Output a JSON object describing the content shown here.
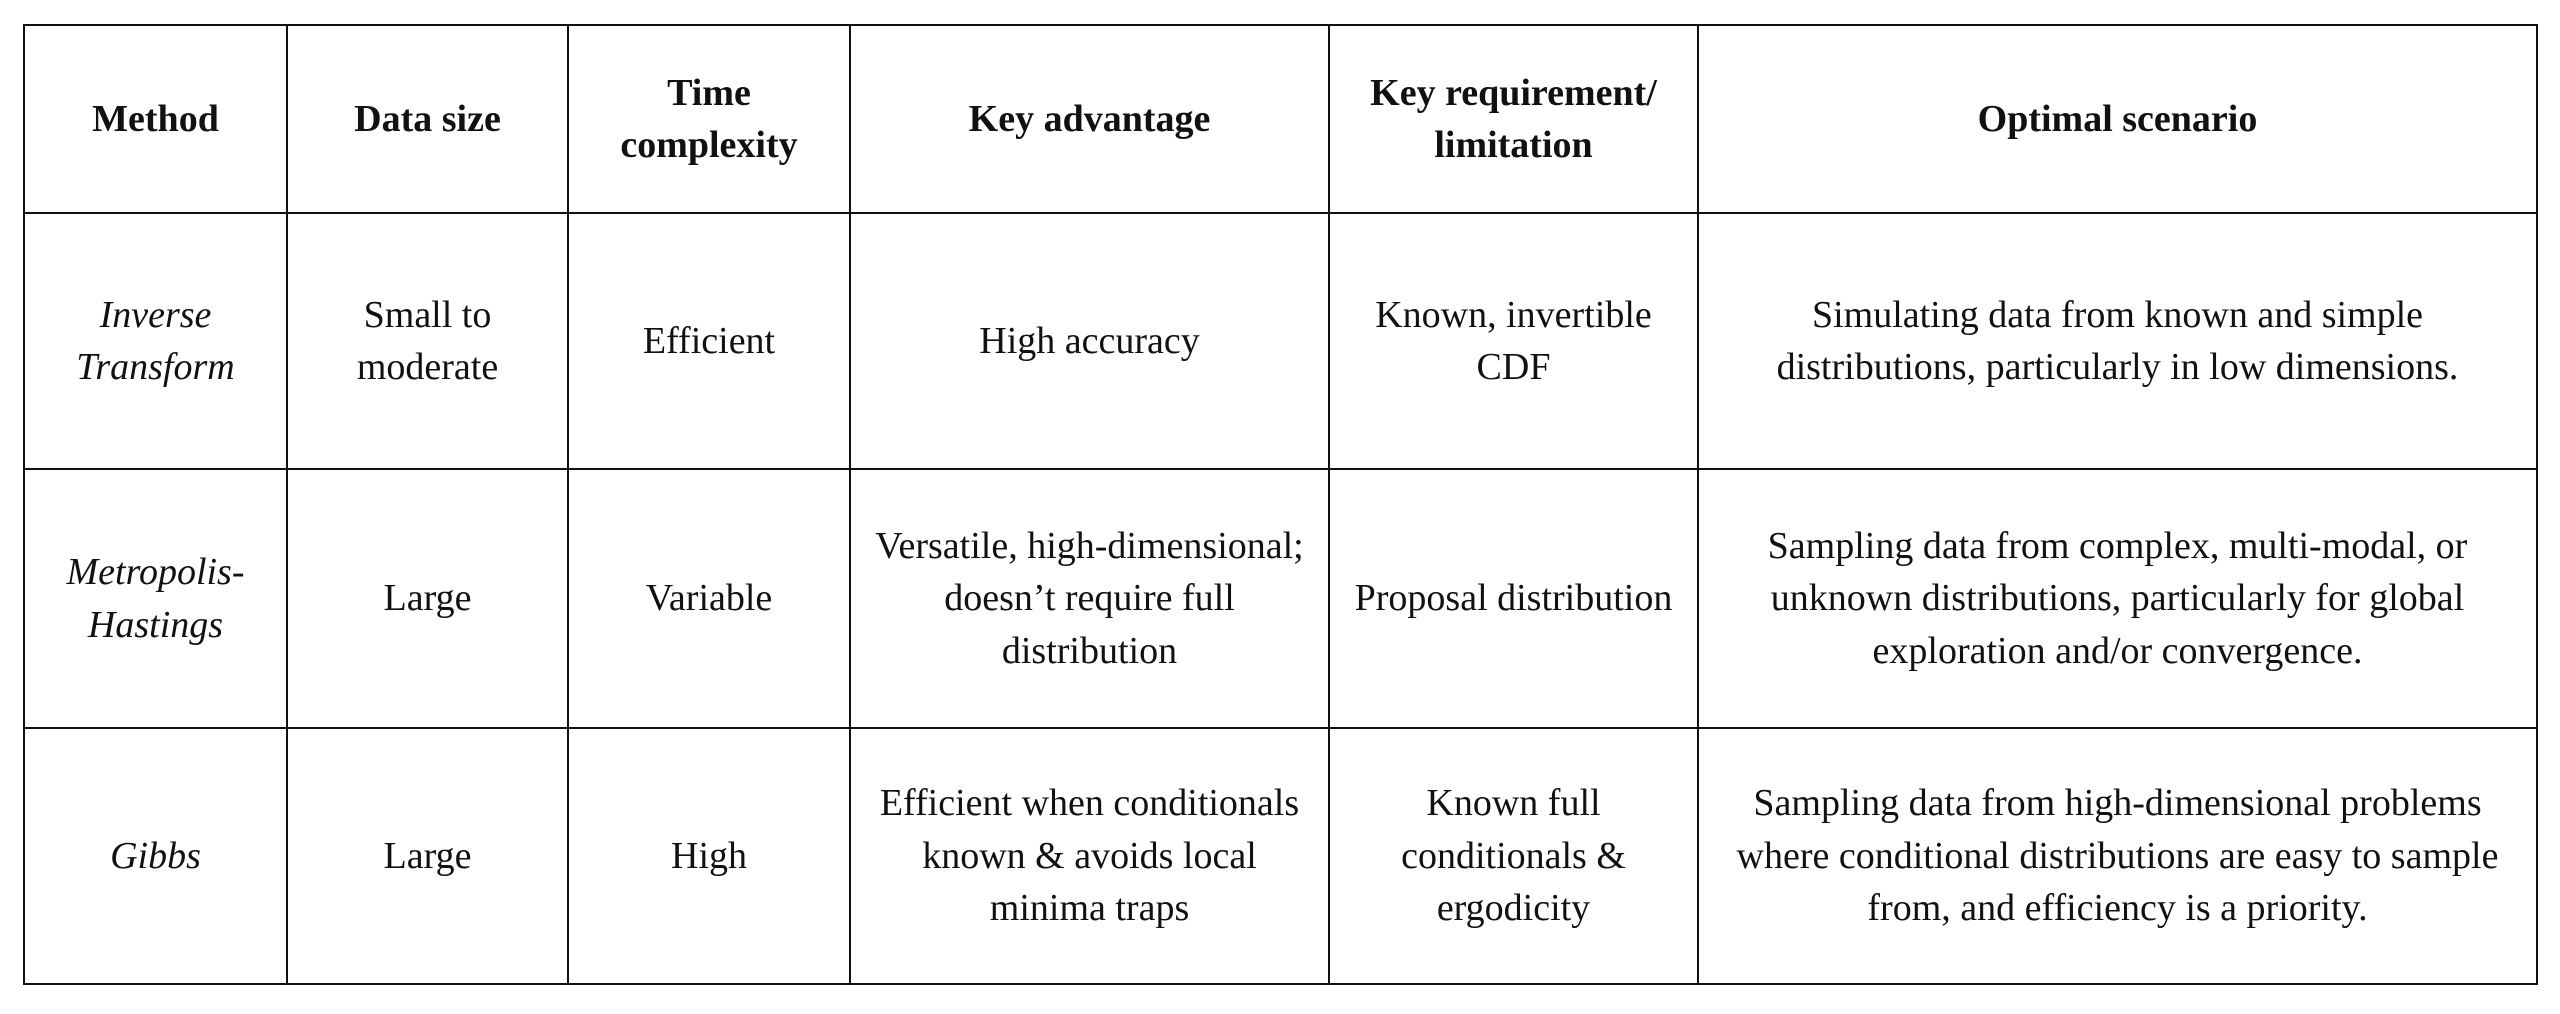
{
  "table": {
    "header": [
      "Method",
      "Data size",
      "Time complexity",
      "Key advantage",
      "Key requirement/ limitation",
      "Optimal scenario"
    ],
    "rows": [
      [
        "Inverse Transform",
        "Small to moderate",
        "Efficient",
        "High accuracy",
        "Known, invertible CDF",
        "Simulating data from known and simple distributions, particularly in low dimensions."
      ],
      [
        "Metropolis-Hastings",
        "Large",
        "Variable",
        "Versatile, high-dimensional; doesn’t require full distribution",
        "Proposal distribution",
        "Sampling data from complex, multi-modal, or unknown distributions, particularly for global exploration and/or convergence."
      ],
      [
        "Gibbs",
        "Large",
        "High",
        "Efficient when conditionals known & avoids local minima traps",
        "Known full conditionals & ergodicity",
        "Sampling data from high-dimensional problems where conditional distributions are easy to sample from, and efficiency is a priority."
      ]
    ]
  }
}
